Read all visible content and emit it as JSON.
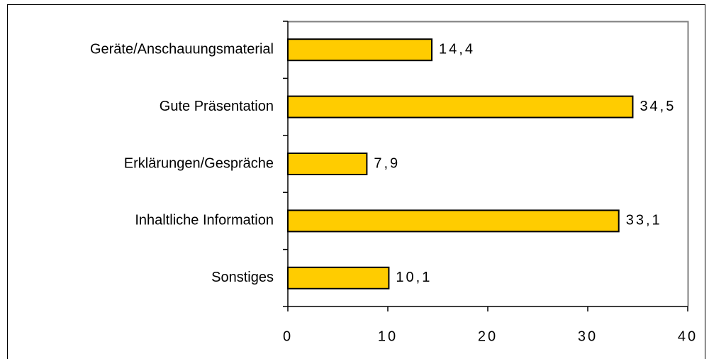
{
  "chart_data": {
    "type": "barh",
    "categories": [
      "Geräte/Anschauungsmaterial",
      "Gute Präsentation",
      "Erklärungen/Gespräche",
      "Inhaltliche Information",
      "Sonstiges"
    ],
    "values": [
      14.4,
      34.5,
      7.9,
      33.1,
      10.1
    ],
    "value_labels": [
      "14,4",
      "34,5",
      "7,9",
      "33,1",
      "10,1"
    ],
    "color": "#ffcc00",
    "xlim": [
      0,
      40
    ],
    "xticks": [
      0,
      10,
      20,
      30,
      40
    ]
  }
}
